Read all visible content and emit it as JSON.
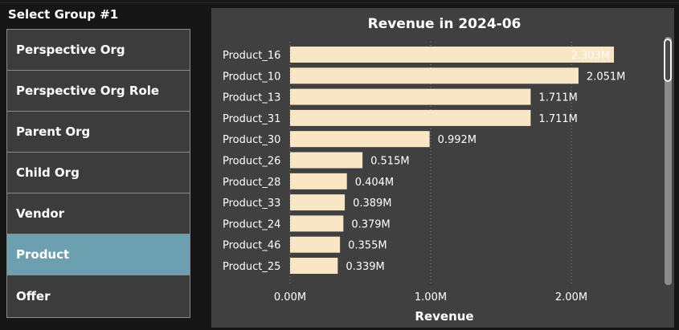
{
  "slicer": {
    "title": "Select Group #1",
    "items": [
      {
        "label": "Perspective Org",
        "selected": false
      },
      {
        "label": "Perspective Org Role",
        "selected": false
      },
      {
        "label": "Parent Org",
        "selected": false
      },
      {
        "label": "Child Org",
        "selected": false
      },
      {
        "label": "Vendor",
        "selected": false
      },
      {
        "label": "Product",
        "selected": true
      },
      {
        "label": "Offer",
        "selected": false
      }
    ]
  },
  "colors": {
    "bar": "#f9e6c5",
    "selected": "#6c9fb0",
    "panel": "#404040",
    "gridline": "#8a8a8a"
  },
  "chart_data": {
    "type": "bar",
    "orientation": "horizontal",
    "title": "Revenue in 2024-06",
    "xlabel": "Revenue",
    "ylabel": "",
    "xlim": [
      0,
      2.3
    ],
    "xticks": [
      0,
      1,
      2
    ],
    "xtick_labels": [
      "0.00M",
      "1.00M",
      "2.00M"
    ],
    "grid": true,
    "categories": [
      "Product_16",
      "Product_10",
      "Product_13",
      "Product_31",
      "Product_30",
      "Product_26",
      "Product_28",
      "Product_33",
      "Product_24",
      "Product_46",
      "Product_25"
    ],
    "values": [
      2.303,
      2.051,
      1.711,
      1.711,
      0.992,
      0.515,
      0.404,
      0.389,
      0.379,
      0.355,
      0.339
    ],
    "value_labels": [
      "2.303M",
      "2.051M",
      "1.711M",
      "1.711M",
      "0.992M",
      "0.515M",
      "0.404M",
      "0.389M",
      "0.379M",
      "0.355M",
      "0.339M"
    ],
    "unit": "M"
  }
}
